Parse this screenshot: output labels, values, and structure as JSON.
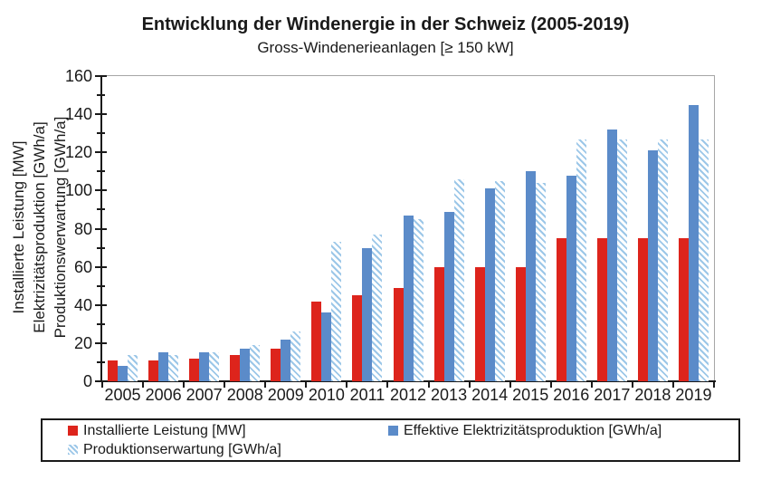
{
  "title": "Entwicklung der Windenergie in der Schweiz (2005-2019)",
  "subtitle": "Gross-Windenerieanlagen [≥ 150 kW]",
  "y_axis": {
    "label_lines": [
      "Installierte Leistung [MW]",
      "Elektrizitätsproduktion [GWh/a]",
      "Produktionswerwartung [GWh/a]"
    ],
    "tick_values": [
      0,
      20,
      40,
      60,
      80,
      100,
      120,
      140,
      160
    ]
  },
  "chart_data": {
    "type": "bar",
    "title": "Entwicklung der Windenergie in der Schweiz (2005-2019)",
    "subtitle": "Gross-Windenerieanlagen [≥ 150 kW]",
    "categories": [
      "2005",
      "2006",
      "2007",
      "2008",
      "2009",
      "2010",
      "2011",
      "2012",
      "2013",
      "2014",
      "2015",
      "2016",
      "2017",
      "2018",
      "2019"
    ],
    "series": [
      {
        "name": "Installierte Leistung [MW]",
        "key": "installierte-leistung",
        "color": "#dd241c",
        "pattern": "solid",
        "values": [
          11,
          11,
          12,
          14,
          17,
          42,
          45,
          49,
          60,
          60,
          60,
          75,
          75,
          75,
          75
        ]
      },
      {
        "name": "Effektive Elektrizitätsproduktion [GWh/a]",
        "key": "effektive-elektrizitaetsproduktion",
        "color": "#5b8bc9",
        "pattern": "solid",
        "values": [
          8,
          15,
          15,
          17,
          22,
          36,
          70,
          87,
          89,
          101,
          110,
          108,
          132,
          121,
          145
        ]
      },
      {
        "name": "Produktionserwartung [GWh/a]",
        "key": "produktionserwartung",
        "color": "#9cc7e8",
        "pattern": "diagonal-hatch",
        "values": [
          14,
          14,
          15,
          19,
          26,
          73,
          77,
          85,
          106,
          105,
          104,
          127,
          127,
          127,
          127
        ]
      }
    ],
    "xlabel": "",
    "ylabel": "Installierte Leistung [MW] / Elektrizitätsproduktion [GWh/a] / Produktionswerwartung [GWh/a]",
    "ylim": [
      0,
      160
    ],
    "y_major_step": 20,
    "y_minor_step": 10,
    "grid": false,
    "legend_position": "bottom"
  },
  "legend": {
    "items": [
      {
        "label": "Installierte Leistung [MW]",
        "swatch": "red-square"
      },
      {
        "label": "Effektive Elektrizitätsproduktion [GWh/a]",
        "swatch": "blue-square"
      },
      {
        "label": "Produktionserwartung [GWh/a]",
        "swatch": "hatched-square"
      }
    ]
  }
}
